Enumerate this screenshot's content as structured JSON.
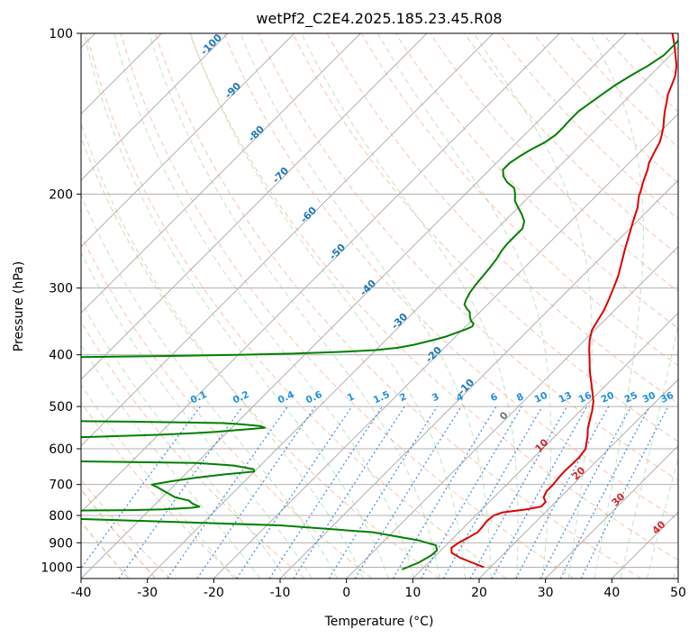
{
  "chart_data": {
    "type": "line",
    "title": "wetPf2_C2E4.2025.185.23.45.R08",
    "xlabel": "Temperature (°C)",
    "ylabel": "Pressure (hPa)",
    "xlim": [
      -40,
      50
    ],
    "ylim": [
      1050,
      100
    ],
    "y_scale": "log",
    "grid": true,
    "x_ticks": [
      -40,
      -30,
      -20,
      -10,
      0,
      10,
      20,
      30,
      40,
      50
    ],
    "y_ticks": [
      100,
      200,
      300,
      400,
      500,
      600,
      700,
      800,
      900,
      1000
    ],
    "skew_t": true,
    "series": [
      {
        "color": "#dd0000",
        "points": [
          [
            19.0,
            1000
          ],
          [
            16.5,
            980
          ],
          [
            14.0,
            960
          ],
          [
            12.0,
            940
          ],
          [
            11.2,
            920
          ],
          [
            11.5,
            900
          ],
          [
            12.2,
            880
          ],
          [
            12.8,
            860
          ],
          [
            12.7,
            840
          ],
          [
            12.5,
            820
          ],
          [
            12.7,
            800
          ],
          [
            13.5,
            790
          ],
          [
            16.5,
            780
          ],
          [
            18.5,
            770
          ],
          [
            18.5,
            755
          ],
          [
            17.5,
            740
          ],
          [
            17.0,
            720
          ],
          [
            17.0,
            700
          ],
          [
            16.8,
            680
          ],
          [
            16.7,
            660
          ],
          [
            16.8,
            640
          ],
          [
            16.8,
            620
          ],
          [
            16.5,
            600
          ],
          [
            16.0,
            590
          ],
          [
            15.0,
            570
          ],
          [
            13.8,
            550
          ],
          [
            12.8,
            530
          ],
          [
            11.8,
            510
          ],
          [
            10.6,
            490
          ],
          [
            9.0,
            470
          ],
          [
            7.3,
            450
          ],
          [
            5.5,
            430
          ],
          [
            3.8,
            410
          ],
          [
            2.0,
            390
          ],
          [
            0.7,
            375
          ],
          [
            -0.4,
            360
          ],
          [
            -1.0,
            345
          ],
          [
            -1.6,
            330
          ],
          [
            -2.5,
            315
          ],
          [
            -3.5,
            300
          ],
          [
            -4.6,
            285
          ],
          [
            -6.0,
            270
          ],
          [
            -7.5,
            255
          ],
          [
            -9.0,
            240
          ],
          [
            -10.6,
            225
          ],
          [
            -12.0,
            212
          ],
          [
            -13.5,
            202
          ],
          [
            -14.2,
            196
          ],
          [
            -15.0,
            190
          ],
          [
            -15.6,
            185
          ],
          [
            -16.2,
            180
          ],
          [
            -17.0,
            175
          ],
          [
            -17.5,
            170
          ],
          [
            -18.0,
            165
          ],
          [
            -18.5,
            160
          ],
          [
            -19.3,
            155
          ],
          [
            -20.2,
            150
          ],
          [
            -21.3,
            145
          ],
          [
            -22.4,
            140
          ],
          [
            -23.4,
            135
          ],
          [
            -24.5,
            130
          ],
          [
            -25.3,
            125
          ],
          [
            -26.2,
            120
          ],
          [
            -27.5,
            115
          ],
          [
            -29.2,
            110
          ],
          [
            -31.0,
            105
          ],
          [
            -33.0,
            100
          ]
        ]
      },
      {
        "color": "#008000",
        "points": [
          [
            7.0,
            1010
          ],
          [
            8.5,
            980
          ],
          [
            9.3,
            950
          ],
          [
            9.4,
            930
          ],
          [
            8.5,
            910
          ],
          [
            5.0,
            890
          ],
          [
            -3.0,
            860
          ],
          [
            -18.0,
            835
          ],
          [
            -38.0,
            820
          ],
          [
            -60.0,
            805
          ],
          [
            -80.0,
            790
          ],
          [
            -95.0,
            788
          ],
          [
            -80.0,
            786
          ],
          [
            -60.0,
            784
          ],
          [
            -43.0,
            782
          ],
          [
            -38.0,
            779
          ],
          [
            -34.0,
            774
          ],
          [
            -33.0,
            770
          ],
          [
            -33.5,
            767
          ],
          [
            -34.5,
            760
          ],
          [
            -35.5,
            750
          ],
          [
            -38.0,
            740
          ],
          [
            -40.0,
            725
          ],
          [
            -42.0,
            710
          ],
          [
            -43.5,
            700
          ],
          [
            -41.0,
            690
          ],
          [
            -38.0,
            680
          ],
          [
            -34.0,
            670
          ],
          [
            -30.0,
            662
          ],
          [
            -30.5,
            655
          ],
          [
            -34.0,
            645
          ],
          [
            -40.0,
            638
          ],
          [
            -60.0,
            633
          ],
          [
            -80.0,
            630
          ],
          [
            -100.0,
            628
          ],
          [
            -80.0,
            580
          ],
          [
            -60.0,
            570
          ],
          [
            -50.0,
            565
          ],
          [
            -45.0,
            561
          ],
          [
            -42.0,
            558
          ],
          [
            -40.0,
            555
          ],
          [
            -37.0,
            551
          ],
          [
            -35.0,
            548
          ],
          [
            -36.0,
            544
          ],
          [
            -39.0,
            540
          ],
          [
            -42.0,
            537
          ],
          [
            -55.0,
            534
          ],
          [
            -75.0,
            531
          ],
          [
            -100.0,
            528
          ],
          [
            -80.0,
            405
          ],
          [
            -60.0,
            402
          ],
          [
            -50.0,
            400
          ],
          [
            -42.0,
            398
          ],
          [
            -35.0,
            395
          ],
          [
            -30.0,
            392
          ],
          [
            -27.0,
            388
          ],
          [
            -25.0,
            383
          ],
          [
            -23.0,
            376
          ],
          [
            -21.5,
            370
          ],
          [
            -20.5,
            364
          ],
          [
            -19.5,
            358
          ],
          [
            -19.0,
            354
          ],
          [
            -19.2,
            350
          ],
          [
            -20.0,
            346
          ],
          [
            -20.5,
            342
          ],
          [
            -21.0,
            338
          ],
          [
            -21.5,
            333
          ],
          [
            -22.5,
            328
          ],
          [
            -23.5,
            322
          ],
          [
            -24.0,
            315
          ],
          [
            -24.5,
            305
          ],
          [
            -24.8,
            295
          ],
          [
            -25.0,
            285
          ],
          [
            -25.2,
            275
          ],
          [
            -25.5,
            265
          ],
          [
            -26.0,
            255
          ],
          [
            -26.2,
            248
          ],
          [
            -26.2,
            240
          ],
          [
            -26.2,
            232
          ],
          [
            -27.0,
            225
          ],
          [
            -28.5,
            218
          ],
          [
            -30.0,
            212
          ],
          [
            -31.5,
            206
          ],
          [
            -32.5,
            200
          ],
          [
            -33.5,
            195
          ],
          [
            -35.5,
            190
          ],
          [
            -37.0,
            185
          ],
          [
            -38.0,
            180
          ],
          [
            -38.0,
            175
          ],
          [
            -37.5,
            170
          ],
          [
            -36.8,
            165
          ],
          [
            -35.8,
            160
          ],
          [
            -35.3,
            155
          ],
          [
            -35.3,
            150
          ],
          [
            -35.4,
            145
          ],
          [
            -35.4,
            140
          ],
          [
            -34.9,
            135
          ],
          [
            -34.4,
            130
          ],
          [
            -33.8,
            125
          ],
          [
            -32.9,
            120
          ],
          [
            -31.8,
            115
          ],
          [
            -31.0,
            110
          ],
          [
            -31.0,
            105
          ],
          [
            -31.0,
            100
          ]
        ]
      }
    ],
    "dry_adiabat_labels": [
      "-100",
      "-90",
      "-80",
      "-70",
      "-60",
      "-50",
      "-40",
      "-30",
      "-20",
      "-10"
    ],
    "mixing_ratio_labels": [
      "0.1",
      "0.2",
      "0.4",
      "0.6",
      "1",
      "1.5",
      "2",
      "3",
      "4",
      "6",
      "8",
      "10",
      "13",
      "16",
      "20",
      "25",
      "30",
      "36"
    ],
    "moist_adiabat_labels": [
      "0",
      "10",
      "20",
      "30",
      "40"
    ]
  }
}
